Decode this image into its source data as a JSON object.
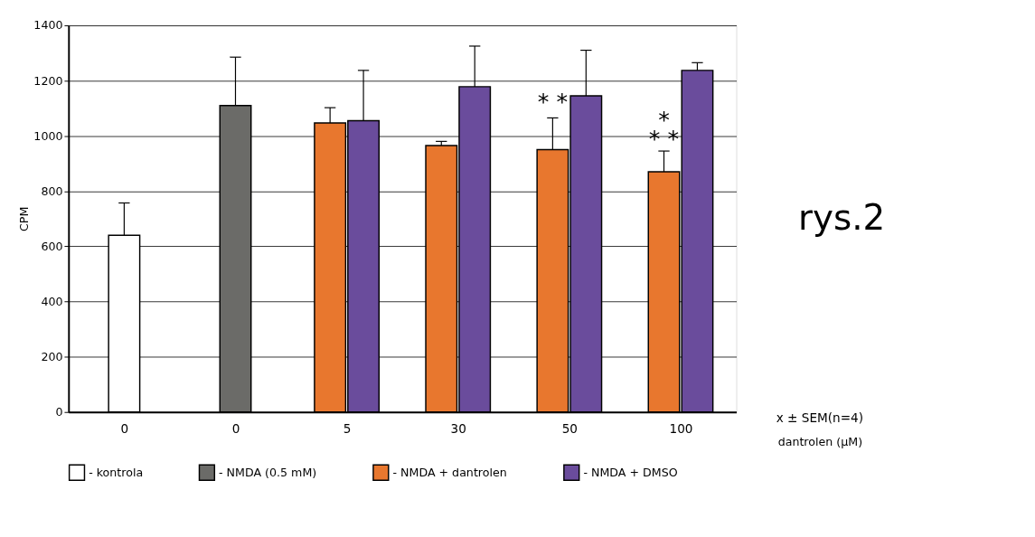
{
  "chart_data": {
    "type": "bar",
    "ylabel": "CPM",
    "xlabel": "dantrolen (µM)",
    "categories": [
      "0",
      "0",
      "5",
      "30",
      "50",
      "100"
    ],
    "series": [
      {
        "name": "- kontrola",
        "color": "#ffffff",
        "values": [
          640,
          null,
          null,
          null,
          null,
          null
        ],
        "errors": [
          [
            640,
            757
          ],
          null,
          null,
          null,
          null,
          null
        ]
      },
      {
        "name": "- NMDA (0.5 mM)",
        "color": "#6b6b68",
        "values": [
          null,
          1110,
          null,
          null,
          null,
          null
        ],
        "errors": [
          null,
          [
            1110,
            1285
          ],
          null,
          null,
          null,
          null
        ]
      },
      {
        "name": "- NMDA + dantrolen",
        "color": "#e8772e",
        "values": [
          null,
          null,
          1047,
          965,
          950,
          870
        ],
        "errors": [
          null,
          null,
          [
            1047,
            1102
          ],
          [
            965,
            980
          ],
          [
            950,
            1065
          ],
          [
            870,
            945
          ]
        ]
      },
      {
        "name": "- NMDA + DMSO",
        "color": "#6a4c9c",
        "values": [
          null,
          null,
          1055,
          1178,
          1145,
          1237
        ],
        "errors": [
          null,
          null,
          [
            1055,
            1237
          ],
          [
            1178,
            1325
          ],
          [
            1145,
            1310
          ],
          [
            1237,
            1265
          ]
        ]
      }
    ],
    "ylim": [
      0,
      1400
    ],
    "yticks": [
      0,
      200,
      400,
      600,
      800,
      1000,
      1200,
      1400
    ],
    "grid": "y",
    "legend": "bottom",
    "annotations": [
      "* *",
      "*",
      "* *",
      "x ± SEM(n=4)",
      "rys.2"
    ]
  }
}
